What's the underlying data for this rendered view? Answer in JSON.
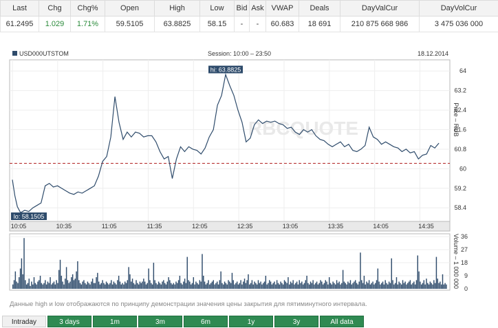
{
  "quote": {
    "headers": [
      "Last",
      "Chg",
      "Chg%",
      "Open",
      "High",
      "Low",
      "Bid",
      "Ask",
      "VWAP",
      "Deals",
      "DayValCur",
      "DayVolCur"
    ],
    "values": [
      "61.2495",
      "1.029",
      "1.71%",
      "59.5105",
      "63.8825",
      "58.15",
      "-",
      "-",
      "60.683",
      "18 691",
      "210 875 668 986",
      "3 475 036 000"
    ],
    "positive_color": "#2a8a3a"
  },
  "chart_data": {
    "type": "line",
    "ticker": "USD000UTSTOM",
    "session": "Session: 10:00 – 23:50",
    "date": "18.12.2014",
    "watermark": "RBCQUOTE",
    "hi_label": "hi: 63.8825",
    "lo_label": "lo: 58.1505",
    "x_ticks": [
      "10:05",
      "10:35",
      "11:05",
      "11:35",
      "12:05",
      "12:35",
      "13:05",
      "13:35",
      "14:05",
      "14:35"
    ],
    "xlim": [
      0,
      53
    ],
    "price": {
      "ylabel": "Price – RUB",
      "ylim": [
        57.9,
        64.4
      ],
      "y_ticks": [
        "64",
        "63.2",
        "62.4",
        "61.6",
        "60.8",
        "60",
        "59.2",
        "58.4"
      ],
      "y_tick_values": [
        64,
        63.2,
        62.4,
        61.6,
        60.8,
        60,
        59.2,
        58.4
      ],
      "reference_line": 60.22,
      "line_color": "#2e4b6b",
      "reference_color": "#b22222",
      "series": [
        {
          "x": [
            0,
            0.3,
            0.6,
            1,
            1.5,
            2,
            2.5,
            3,
            3.5,
            4,
            4.5,
            5,
            5.5,
            6,
            6.5,
            7,
            7.5,
            8,
            8.5,
            9,
            9.5,
            10,
            10.5,
            11,
            11.5,
            12,
            12.5,
            13,
            13.5,
            14,
            14.5,
            15,
            15.5,
            16,
            16.5,
            17,
            17.5,
            18,
            18.5,
            19,
            19.5,
            20,
            20.5,
            21,
            21.5,
            22,
            22.5,
            23,
            23.5,
            24,
            24.5,
            25,
            25.5,
            26,
            26.5,
            27,
            27.5,
            28,
            28.5,
            29,
            29.5,
            30,
            30.5,
            31,
            31.5,
            32,
            32.5,
            33,
            33.5,
            34,
            34.5,
            35,
            35.5,
            36,
            36.5,
            37,
            37.5,
            38,
            38.5,
            39,
            39.5,
            40,
            40.5,
            41,
            41.5,
            42,
            42.5,
            43,
            43.5,
            44,
            44.5,
            45,
            45.5,
            46,
            46.5,
            47,
            47.5,
            48,
            48.5,
            49,
            49.5,
            50,
            50.5,
            51,
            51.5,
            52
          ],
          "y": [
            59.55,
            58.9,
            58.45,
            58.2,
            58.3,
            58.25,
            58.4,
            58.5,
            58.6,
            59.3,
            59.4,
            59.25,
            59.3,
            59.2,
            59.1,
            59.0,
            58.95,
            59.05,
            59.0,
            59.1,
            59.2,
            59.3,
            59.7,
            60.3,
            60.5,
            61.3,
            62.95,
            61.9,
            61.2,
            61.5,
            61.3,
            61.5,
            61.45,
            61.3,
            61.35,
            61.35,
            61.1,
            60.7,
            60.4,
            60.5,
            59.6,
            60.4,
            60.9,
            60.7,
            60.9,
            60.8,
            60.75,
            60.6,
            60.85,
            61.3,
            61.6,
            62.6,
            63.0,
            63.85,
            63.4,
            63.0,
            62.4,
            61.9,
            61.1,
            61.25,
            61.8,
            62.0,
            61.85,
            61.95,
            61.9,
            61.95,
            61.85,
            61.8,
            61.65,
            61.7,
            61.5,
            61.4,
            61.6,
            61.5,
            61.6,
            61.35,
            61.2,
            61.15,
            61.0,
            60.9,
            61.0,
            61.1,
            60.9,
            61.0,
            60.75,
            60.7,
            60.8,
            60.95,
            61.7,
            61.3,
            61.2,
            61.0,
            61.1,
            61.0,
            60.9,
            60.85,
            60.7,
            60.8,
            60.65,
            60.7,
            60.4,
            60.55,
            60.6,
            60.95,
            60.85,
            61.05
          ]
        }
      ]
    },
    "volume": {
      "ylabel": "Volume – 1 000 000",
      "ylim": [
        0,
        37
      ],
      "y_ticks": [
        "36",
        "27",
        "18",
        "9",
        "0"
      ],
      "y_tick_values": [
        36,
        27,
        18,
        9,
        0
      ],
      "bar_color": "#2e4b6b",
      "values": [
        3,
        6,
        12,
        5,
        4,
        8,
        14,
        21,
        10,
        35,
        6,
        3,
        4,
        7,
        2,
        5,
        3,
        8,
        4,
        3,
        5,
        6,
        9,
        4,
        3,
        4,
        6,
        3,
        5,
        4,
        8,
        3,
        4,
        5,
        3,
        6,
        4,
        13,
        20,
        9,
        5,
        3,
        7,
        15,
        6,
        4,
        5,
        8,
        10,
        6,
        7,
        12,
        19,
        6,
        4,
        3,
        5,
        6,
        4,
        3,
        5,
        4,
        3,
        5,
        7,
        4,
        4,
        8,
        11,
        5,
        3,
        4,
        6,
        4,
        3,
        5,
        4,
        3,
        4,
        6,
        3,
        5,
        4,
        3,
        6,
        9,
        5,
        3,
        4,
        3,
        5,
        4,
        6,
        15,
        10,
        5,
        7,
        4,
        3,
        6,
        4,
        3,
        5,
        4,
        5,
        7,
        5,
        3,
        4,
        14,
        6,
        4,
        3,
        18,
        6,
        4,
        3,
        5,
        4,
        3,
        5,
        6,
        4,
        3,
        5,
        8,
        6,
        4,
        3,
        4,
        3,
        5,
        4,
        6,
        9,
        4,
        3,
        5,
        7,
        4,
        22,
        6,
        5,
        3,
        4,
        8,
        3,
        5,
        4,
        3,
        6,
        5,
        24,
        9,
        5,
        3,
        4,
        6,
        3,
        4,
        5,
        6,
        3,
        4,
        5,
        3,
        6,
        12,
        4,
        3,
        5,
        4,
        3,
        6,
        5,
        4,
        11,
        6,
        3,
        4,
        5,
        3,
        4,
        6,
        3,
        5,
        7,
        4,
        6,
        10,
        3,
        4,
        6,
        3,
        5,
        4,
        3,
        6,
        4,
        5,
        3,
        4,
        5,
        9,
        3,
        4,
        6,
        5,
        3,
        4,
        5,
        3,
        6,
        4,
        3,
        5,
        4,
        3,
        6,
        5,
        4,
        8,
        3,
        5,
        4,
        6,
        3,
        4,
        5,
        3,
        6,
        4,
        5,
        3,
        4,
        6,
        9,
        4,
        3,
        5,
        4,
        6,
        3,
        4,
        5,
        3,
        4,
        6,
        5,
        3,
        4,
        6,
        5,
        3,
        8,
        4,
        3,
        5,
        4,
        3,
        6,
        4,
        5,
        3,
        4,
        13,
        5,
        4,
        3,
        5,
        4,
        6,
        3,
        4,
        5,
        6,
        4,
        3,
        5,
        25,
        6,
        4,
        9,
        3,
        5,
        4,
        6,
        3,
        4,
        5,
        3,
        4,
        6,
        14,
        5,
        3,
        4,
        5,
        3,
        6,
        4,
        3,
        5,
        4,
        21,
        6,
        3,
        4,
        8,
        3,
        5,
        4,
        3,
        6,
        4,
        5,
        3,
        4,
        5,
        6,
        3,
        4,
        5,
        3,
        6,
        23,
        12,
        5,
        3,
        4,
        6,
        3,
        7,
        4,
        3,
        5,
        4,
        3,
        6,
        4,
        22,
        7,
        4,
        5,
        3,
        10,
        3,
        4,
        3
      ]
    }
  },
  "note": "Данные high и low отображаются по принципу демонстрации значения цены закрытия для пятиминутного интервала.",
  "tabs": [
    {
      "label": "Intraday",
      "active": true
    },
    {
      "label": "3 days",
      "active": false
    },
    {
      "label": "1m",
      "active": false
    },
    {
      "label": "3m",
      "active": false
    },
    {
      "label": "6m",
      "active": false
    },
    {
      "label": "1y",
      "active": false
    },
    {
      "label": "3y",
      "active": false
    },
    {
      "label": "All data",
      "active": false
    }
  ]
}
